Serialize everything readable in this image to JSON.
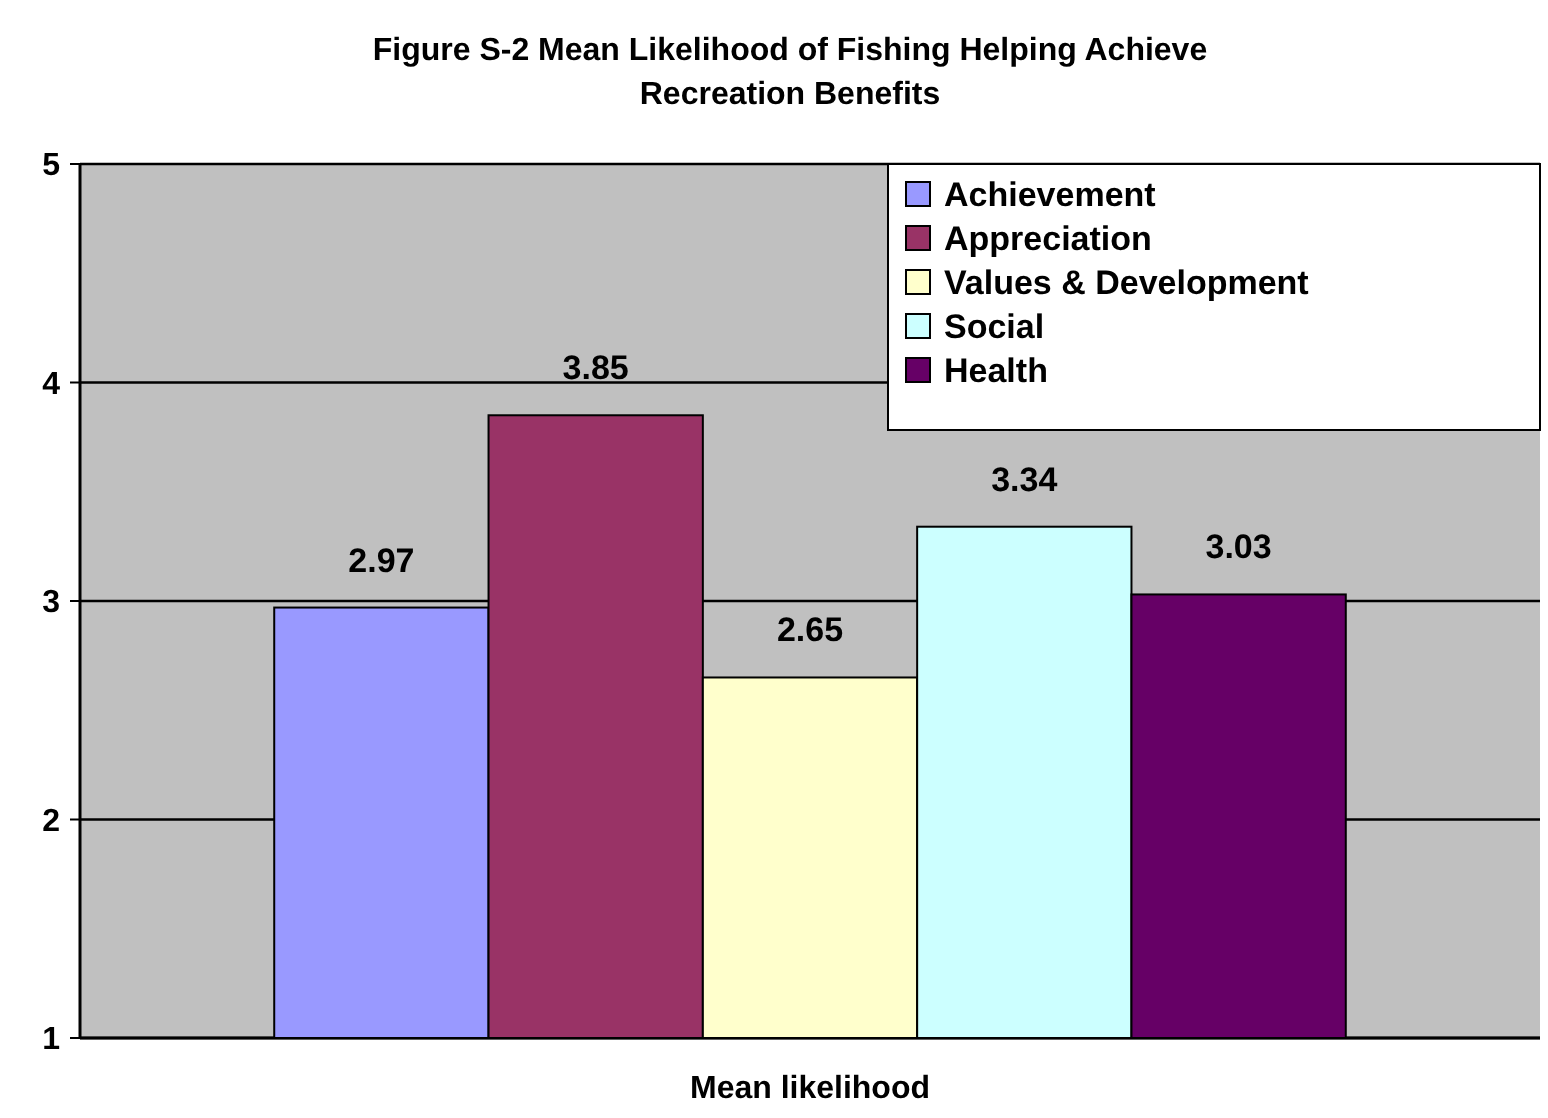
{
  "chart_data": {
    "type": "bar",
    "title": "Figure S-2 Mean Likelihood of Fishing Helping Achieve Recreation Benefits",
    "categories": [
      "Mean likelihood"
    ],
    "series": [
      {
        "name": "Achievement",
        "color": "#9999ff",
        "values": [
          2.97
        ]
      },
      {
        "name": "Appreciation",
        "color": "#993366",
        "values": [
          3.85
        ]
      },
      {
        "name": "Values & Development",
        "color": "#ffffcc",
        "values": [
          2.65
        ]
      },
      {
        "name": "Social",
        "color": "#ccffff",
        "values": [
          3.34
        ]
      },
      {
        "name": "Health",
        "color": "#660066",
        "values": [
          3.03
        ]
      }
    ],
    "ylim": [
      1,
      5
    ],
    "yticks": [
      1,
      2,
      3,
      4,
      5
    ],
    "grid": "y",
    "legend": "top right",
    "data_labels": true
  }
}
